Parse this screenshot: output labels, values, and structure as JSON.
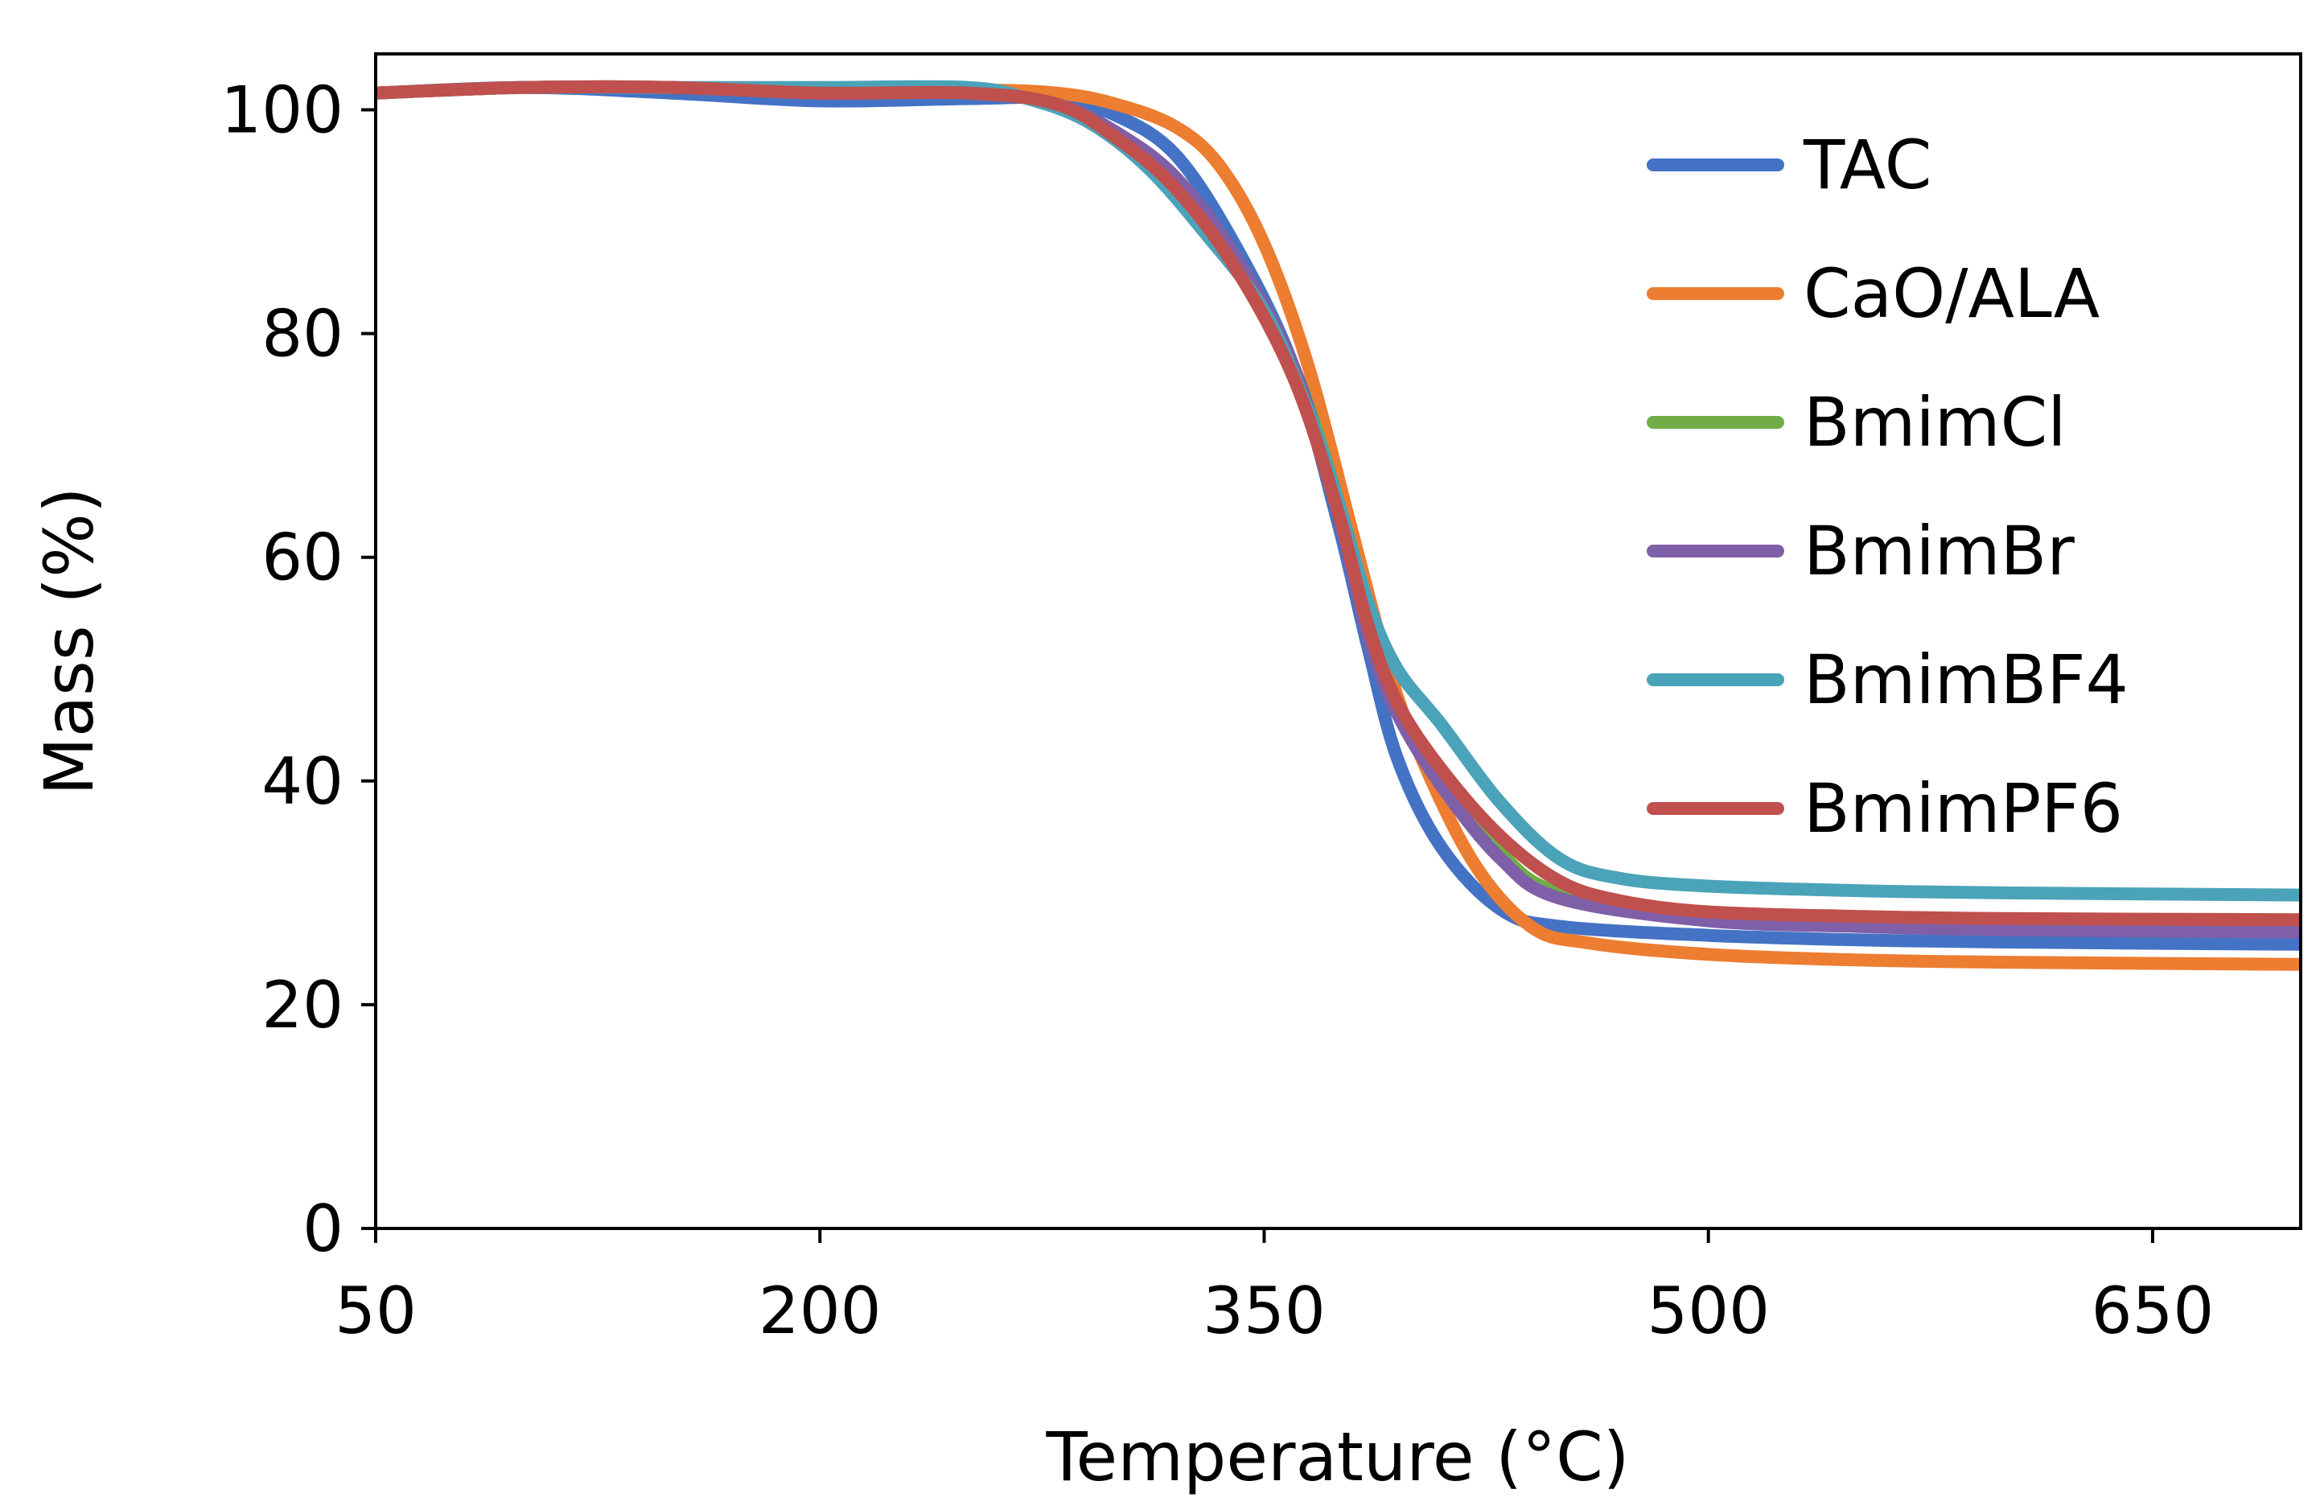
{
  "chart_data": {
    "type": "line",
    "title": "",
    "xlabel": "Temperature (°C)",
    "ylabel": "Mass  (%)",
    "xlim": [
      50,
      700
    ],
    "ylim": [
      0,
      105
    ],
    "xticks": [
      50,
      200,
      350,
      500,
      650
    ],
    "yticks": [
      0,
      20,
      40,
      60,
      80,
      100
    ],
    "grid": false,
    "legend_position": "top-right",
    "series": [
      {
        "name": "TAC",
        "color": "#4472C4",
        "points": [
          [
            50,
            101.5
          ],
          [
            100,
            102
          ],
          [
            150,
            101.5
          ],
          [
            200,
            100.8
          ],
          [
            250,
            101
          ],
          [
            280,
            101
          ],
          [
            300,
            99.5
          ],
          [
            320,
            96
          ],
          [
            340,
            88
          ],
          [
            360,
            77
          ],
          [
            375,
            63
          ],
          [
            385,
            52
          ],
          [
            395,
            42
          ],
          [
            410,
            34
          ],
          [
            430,
            28.5
          ],
          [
            450,
            27
          ],
          [
            500,
            26.2
          ],
          [
            550,
            25.8
          ],
          [
            600,
            25.6
          ],
          [
            700,
            25.4
          ]
        ]
      },
      {
        "name": "CaO/ALA",
        "color": "#ED7D31",
        "points": [
          [
            50,
            101.5
          ],
          [
            100,
            102
          ],
          [
            150,
            102
          ],
          [
            200,
            101.8
          ],
          [
            250,
            101.8
          ],
          [
            280,
            101.5
          ],
          [
            300,
            100.5
          ],
          [
            320,
            98.5
          ],
          [
            335,
            95
          ],
          [
            350,
            88
          ],
          [
            365,
            77
          ],
          [
            380,
            62
          ],
          [
            390,
            52
          ],
          [
            400,
            44
          ],
          [
            420,
            33
          ],
          [
            440,
            27
          ],
          [
            460,
            25.5
          ],
          [
            500,
            24.5
          ],
          [
            550,
            24
          ],
          [
            600,
            23.8
          ],
          [
            700,
            23.6
          ]
        ]
      },
      {
        "name": "BmimCl",
        "color": "#70AD47",
        "points": [
          [
            50,
            101.5
          ],
          [
            100,
            102
          ],
          [
            150,
            102
          ],
          [
            200,
            101.5
          ],
          [
            250,
            101.5
          ],
          [
            280,
            100.5
          ],
          [
            300,
            98
          ],
          [
            320,
            94
          ],
          [
            340,
            87
          ],
          [
            360,
            77
          ],
          [
            375,
            65
          ],
          [
            385,
            54
          ],
          [
            395,
            47
          ],
          [
            410,
            40
          ],
          [
            430,
            33.5
          ],
          [
            450,
            30
          ],
          [
            500,
            28
          ],
          [
            550,
            27.3
          ],
          [
            600,
            27
          ],
          [
            700,
            26.8
          ]
        ]
      },
      {
        "name": "BmimBr",
        "color": "#7F5FA7",
        "points": [
          [
            50,
            101.5
          ],
          [
            100,
            102
          ],
          [
            150,
            102
          ],
          [
            200,
            101.5
          ],
          [
            250,
            101.5
          ],
          [
            280,
            100.5
          ],
          [
            300,
            98
          ],
          [
            320,
            94
          ],
          [
            340,
            87
          ],
          [
            360,
            77
          ],
          [
            375,
            64
          ],
          [
            385,
            53
          ],
          [
            395,
            46
          ],
          [
            410,
            39.5
          ],
          [
            430,
            33
          ],
          [
            450,
            29.5
          ],
          [
            500,
            27.5
          ],
          [
            550,
            27
          ],
          [
            600,
            26.7
          ],
          [
            700,
            26.5
          ]
        ]
      },
      {
        "name": "BmimBF4",
        "color": "#4BA3B9",
        "points": [
          [
            50,
            101.5
          ],
          [
            100,
            102
          ],
          [
            150,
            102
          ],
          [
            200,
            102
          ],
          [
            250,
            102
          ],
          [
            270,
            101
          ],
          [
            290,
            99
          ],
          [
            310,
            95
          ],
          [
            330,
            89
          ],
          [
            350,
            82
          ],
          [
            365,
            73
          ],
          [
            375,
            65
          ],
          [
            385,
            56
          ],
          [
            395,
            50
          ],
          [
            410,
            45
          ],
          [
            430,
            38
          ],
          [
            450,
            33
          ],
          [
            470,
            31.3
          ],
          [
            500,
            30.6
          ],
          [
            550,
            30.2
          ],
          [
            600,
            30
          ],
          [
            700,
            29.8
          ]
        ]
      },
      {
        "name": "BmimPF6",
        "color": "#C0504D",
        "points": [
          [
            50,
            101.5
          ],
          [
            100,
            102
          ],
          [
            150,
            102
          ],
          [
            200,
            101.5
          ],
          [
            250,
            101.5
          ],
          [
            280,
            100.5
          ],
          [
            300,
            97.5
          ],
          [
            320,
            93
          ],
          [
            340,
            86
          ],
          [
            360,
            76
          ],
          [
            375,
            64
          ],
          [
            385,
            54
          ],
          [
            395,
            47
          ],
          [
            410,
            41
          ],
          [
            430,
            35
          ],
          [
            450,
            31
          ],
          [
            470,
            29.3
          ],
          [
            500,
            28.3
          ],
          [
            550,
            27.9
          ],
          [
            600,
            27.7
          ],
          [
            700,
            27.6
          ]
        ]
      }
    ]
  }
}
